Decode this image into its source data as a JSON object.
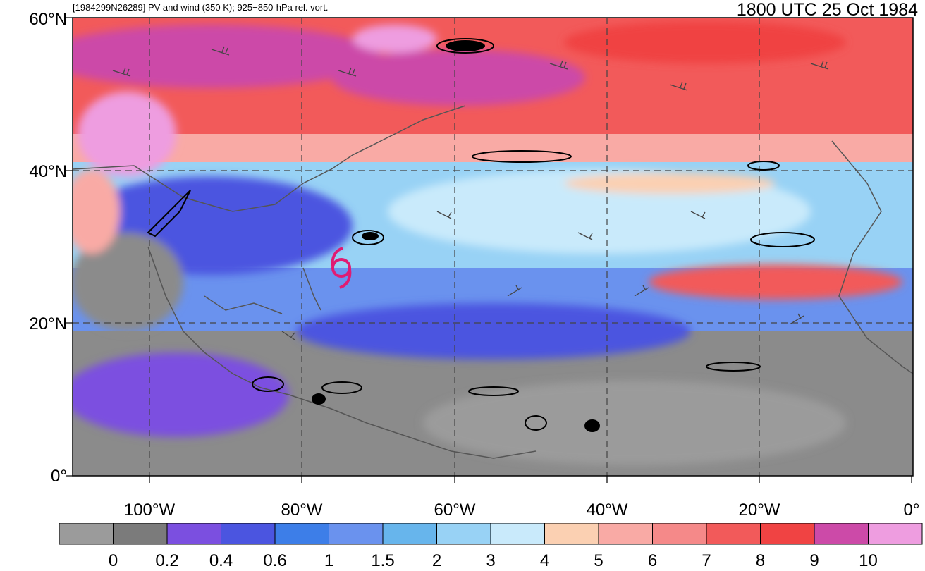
{
  "header": {
    "left_title": "[1984299N26289] PV and wind (350 K); 925−850-hPa rel. vort.",
    "right_title": "1800 UTC 25 Oct 1984"
  },
  "map": {
    "lon_range": [
      -110,
      0
    ],
    "lat_range": [
      0,
      60
    ],
    "y_ticks": [
      "60°N",
      "40°N",
      "20°N",
      "0°"
    ],
    "x_ticks": [
      "100°W",
      "80°W",
      "60°W",
      "40°W",
      "20°W",
      "0°"
    ],
    "storm_symbol": "tropical-cyclone-icon",
    "storm_color": "#e01b73",
    "gridlines": "dashed"
  },
  "colorbar": {
    "colors": [
      "#9b9b9b",
      "#7b7b7b",
      "#7b4fe0",
      "#4b55e0",
      "#3d7ee8",
      "#6a92ee",
      "#67b5ec",
      "#98d2f5",
      "#c9eafb",
      "#fbd0b2",
      "#f9aaa5",
      "#f58989",
      "#f25a5a",
      "#f04343",
      "#cc4aa8",
      "#ee9de0"
    ],
    "labels": [
      "0",
      "0.2",
      "0.4",
      "0.6",
      "1",
      "1.5",
      "2",
      "3",
      "4",
      "5",
      "6",
      "7",
      "8",
      "9",
      "10"
    ]
  }
}
